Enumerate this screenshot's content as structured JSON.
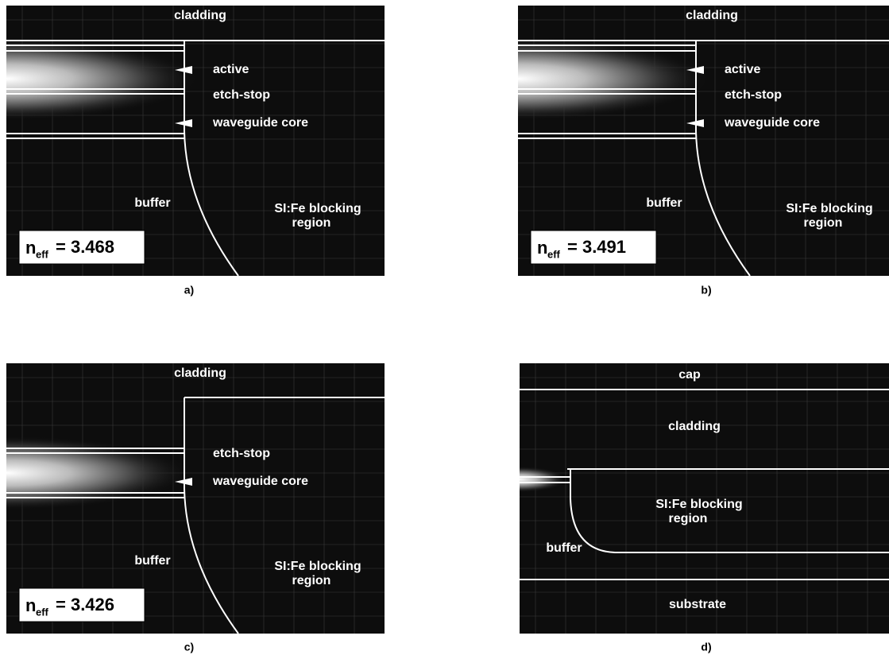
{
  "panels": [
    {
      "caption": "a)",
      "labels": [
        "cladding",
        "active",
        "etch-stop",
        "waveguide core",
        "buffer",
        "SI:Fe blocking",
        "region"
      ],
      "neff": {
        "symbol": "n",
        "subscript": "eff",
        "value": "= 3.468"
      }
    },
    {
      "caption": "b)",
      "labels": [
        "cladding",
        "active",
        "etch-stop",
        "waveguide core",
        "buffer",
        "SI:Fe blocking",
        "region"
      ],
      "neff": {
        "symbol": "n",
        "subscript": "eff",
        "value": "= 3.491"
      }
    },
    {
      "caption": "c)",
      "labels": [
        "cladding",
        "etch-stop",
        "waveguide core",
        "buffer",
        "SI:Fe blocking",
        "region"
      ],
      "neff": {
        "symbol": "n",
        "subscript": "eff",
        "value": "= 3.426"
      }
    },
    {
      "caption": "d)",
      "labels": [
        "cap",
        "cladding",
        "SI:Fe blocking",
        "region",
        "buffer",
        "substrate"
      ]
    }
  ]
}
